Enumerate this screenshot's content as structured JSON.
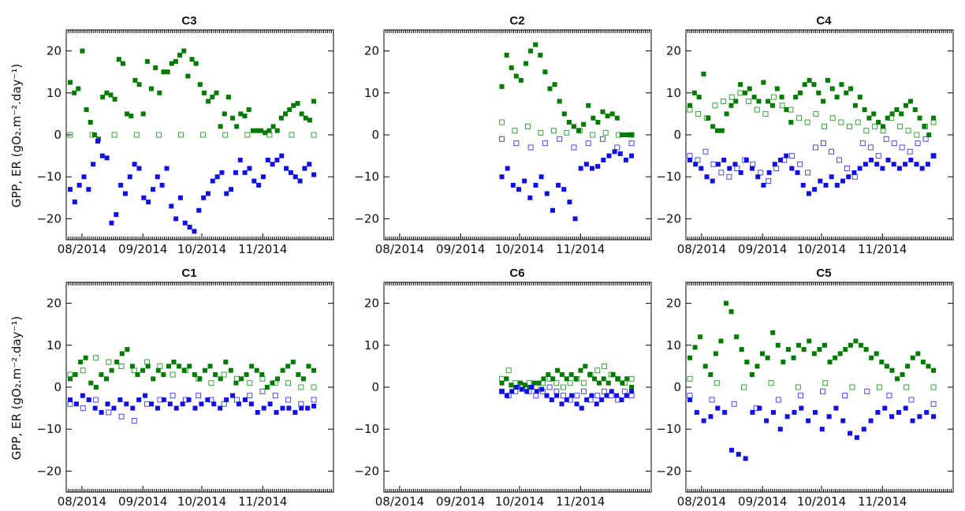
{
  "figure": {
    "ylabel": "GPP, ER (gO₂.m⁻².day⁻¹)",
    "colors": {
      "gpp": "#007a00",
      "er": "#1010e0",
      "gpp_light": "#3aa03a",
      "er_light": "#4a4ae8"
    }
  },
  "chart_data": [
    {
      "type": "scatter",
      "title": "C3",
      "ylim": [
        -25,
        25
      ],
      "yticks": [
        -20,
        -10,
        0,
        10,
        20
      ],
      "xlim": [
        "2014-07-24",
        "2014-12-07"
      ],
      "xticks": [
        "08/2014",
        "09/2014",
        "10/2014",
        "11/2014"
      ],
      "gpp_filled": [
        12.5,
        10,
        11,
        20,
        6,
        3,
        0,
        -1,
        9,
        10,
        9.5,
        8.5,
        18,
        17,
        5,
        4.5,
        13,
        12,
        5,
        17.5,
        11,
        16,
        10,
        15,
        15,
        17,
        17.5,
        19,
        20,
        14,
        18,
        17,
        12,
        10,
        8,
        9,
        10,
        2,
        5,
        9,
        4,
        2,
        5,
        4.5,
        6,
        1,
        1,
        1,
        0.5,
        1,
        2,
        1,
        4,
        5,
        6,
        7,
        7.5,
        5,
        4,
        3.5,
        8
      ],
      "er_filled": [
        -13,
        -16,
        -12,
        -10,
        -13,
        -7,
        -1.5,
        -5,
        -5.5,
        -21,
        -19,
        -12,
        -14,
        -10,
        -7,
        -8,
        -15,
        -16,
        -13,
        -10,
        -12,
        -8,
        -17,
        -20,
        -15,
        -21,
        -22,
        -23,
        -18,
        -15,
        -14,
        -11,
        -10,
        -9,
        -14,
        -13,
        -9,
        -6,
        -9,
        -8,
        -11,
        -12,
        -10,
        -6,
        -7,
        -6,
        -5,
        -8,
        -9,
        -10,
        -11,
        -8,
        -7,
        -9.5
      ],
      "gpp_open": [
        0,
        0,
        0,
        0,
        0,
        0,
        0,
        0,
        0,
        0,
        0,
        0
      ],
      "er_open": []
    },
    {
      "type": "scatter",
      "title": "C2",
      "ylim": [
        -25,
        25
      ],
      "yticks": [
        -20,
        -10,
        0,
        10,
        20
      ],
      "xlim": [
        "2014-07-24",
        "2014-12-07"
      ],
      "xticks": [
        "08/2014",
        "09/2014",
        "10/2014",
        "11/2014"
      ],
      "gpp_filled": [
        11.5,
        19,
        16,
        14,
        13,
        17,
        20,
        21.5,
        19,
        15,
        11,
        12,
        8,
        5,
        3,
        2,
        1,
        2.5,
        7,
        4,
        3,
        5.5,
        4.5,
        5,
        4,
        0,
        0,
        0
      ],
      "er_filled": [
        -10,
        -8,
        -12,
        -13,
        -11,
        -15,
        -12,
        -10,
        -14,
        -18,
        -12,
        -13,
        -16,
        -20,
        -8,
        -7,
        -8,
        -7.5,
        -6,
        -5,
        -4,
        -4.5,
        -6,
        -5
      ],
      "gpp_open": [
        3,
        1,
        2,
        0.5,
        1,
        0.5,
        1,
        0,
        0.5,
        0,
        0
      ],
      "er_open": [
        -1,
        -2,
        -3,
        -2,
        -1,
        -3,
        -2,
        -1,
        -3,
        -2
      ]
    },
    {
      "type": "scatter",
      "title": "C4",
      "ylim": [
        -25,
        25
      ],
      "yticks": [
        -20,
        -10,
        0,
        10,
        20
      ],
      "xlim": [
        "2014-07-24",
        "2014-12-07"
      ],
      "xticks": [
        "08/2014",
        "09/2014",
        "10/2014",
        "11/2014"
      ],
      "gpp_filled": [
        7,
        10,
        9,
        14.5,
        4,
        2,
        1,
        1,
        5,
        7,
        8,
        12,
        10,
        11,
        9,
        8,
        12.5,
        8,
        7,
        11,
        9,
        6,
        3,
        9,
        10,
        12,
        13,
        12,
        10,
        8,
        13,
        11,
        9,
        12,
        10,
        11,
        7,
        9,
        6,
        4,
        5,
        3,
        2,
        4,
        5,
        6,
        5,
        7,
        8,
        6,
        4,
        2,
        0,
        4
      ],
      "er_filled": [
        -6,
        -7,
        -8,
        -10,
        -11,
        -7,
        -6,
        -8,
        -7,
        -9,
        -6,
        -8,
        -10,
        -12,
        -9,
        -7,
        -6,
        -5,
        -8,
        -9,
        -12,
        -14,
        -13,
        -11,
        -12,
        -10,
        -12,
        -11,
        -10,
        -9,
        -8,
        -7,
        -6,
        -7,
        -8,
        -6,
        -7,
        -8,
        -7,
        -6,
        -7,
        -8,
        -7,
        -5
      ],
      "gpp_open": [
        6,
        5,
        4,
        7,
        8,
        9,
        10,
        8,
        6,
        5,
        9,
        7,
        6,
        4,
        3,
        5,
        2,
        4,
        3,
        2,
        3,
        1,
        2,
        1,
        4,
        2,
        1,
        0,
        2,
        3
      ],
      "er_open": [
        -5,
        -6,
        -4,
        -7,
        -9,
        -10,
        -8,
        -6,
        -7,
        -9,
        -11,
        -8,
        -6,
        -5,
        -7,
        -9,
        -3,
        -2,
        -4,
        -6,
        -8,
        -10,
        -2,
        -3,
        -5,
        -1,
        -2,
        -3,
        -4,
        -2,
        -1,
        -5
      ]
    },
    {
      "type": "scatter",
      "title": "C1",
      "ylim": [
        -25,
        25
      ],
      "yticks": [
        -20,
        -10,
        0,
        10,
        20
      ],
      "xlim": [
        "2014-07-24",
        "2014-12-07"
      ],
      "xticks": [
        "08/2014",
        "09/2014",
        "10/2014",
        "11/2014"
      ],
      "gpp_filled": [
        2,
        3,
        6,
        7,
        1,
        0,
        3,
        2,
        4,
        6,
        8,
        9,
        5,
        3,
        4,
        5,
        2,
        4,
        3,
        5,
        6,
        5,
        4,
        5,
        3,
        2,
        4,
        5,
        3,
        2,
        6,
        4,
        1,
        2,
        3,
        5,
        4,
        3,
        0,
        1,
        2,
        4,
        5,
        6,
        3,
        2,
        5,
        4
      ],
      "er_filled": [
        -3,
        -4,
        -2,
        -3,
        -5,
        -6,
        -4,
        -5,
        -3,
        -4,
        -5,
        -3,
        -2,
        -4,
        -5,
        -3,
        -4,
        -5,
        -4,
        -3,
        -5,
        -4,
        -3,
        -4,
        -5,
        -3,
        -2,
        -4,
        -3,
        -4,
        -6,
        -5,
        -4,
        -6,
        -5,
        -5,
        -6,
        -5,
        -5,
        -4.5
      ],
      "gpp_open": [
        3,
        4,
        7,
        6,
        5,
        4,
        6,
        5,
        3,
        4,
        2,
        1,
        3,
        2,
        1,
        2,
        1,
        1,
        0,
        0
      ],
      "er_open": [
        -4,
        -5,
        -3,
        -6,
        -7,
        -8,
        -4,
        -3,
        -2,
        -3,
        -2,
        -3,
        -4,
        -3,
        -2,
        -1,
        -2,
        -3,
        -4,
        -3
      ]
    },
    {
      "type": "scatter",
      "title": "C6",
      "ylim": [
        -25,
        25
      ],
      "yticks": [
        -20,
        -10,
        0,
        10,
        20
      ],
      "xlim": [
        "2014-07-24",
        "2014-12-07"
      ],
      "xticks": [
        "08/2014",
        "09/2014",
        "10/2014",
        "11/2014"
      ],
      "gpp_filled": [
        1,
        2,
        0.5,
        0,
        1,
        0.5,
        0,
        1,
        1,
        2,
        3,
        2,
        4,
        3,
        2,
        3,
        2,
        4,
        5,
        3,
        2,
        1,
        2,
        1,
        3,
        2,
        1,
        2,
        0
      ],
      "er_filled": [
        -1,
        -2,
        -1,
        0,
        -0.5,
        -1,
        0,
        -1,
        -0.5,
        -2,
        -3,
        -2,
        -4,
        -3,
        -2,
        -4,
        -5,
        -3,
        -2,
        -4,
        -3,
        -2,
        -1,
        -2,
        -3,
        -2,
        -1
      ],
      "gpp_open": [
        2,
        4,
        1,
        0.5,
        1,
        0,
        1,
        2,
        1,
        0,
        1,
        2,
        1,
        3,
        4,
        5,
        3,
        2,
        1,
        2
      ],
      "er_open": [
        -1,
        -2,
        -1,
        0,
        -1,
        -2,
        -1,
        0,
        -1,
        -2,
        -3,
        -2,
        -1,
        -3,
        -2,
        -1,
        -2,
        -3,
        -1,
        -2
      ]
    },
    {
      "type": "scatter",
      "title": "C5",
      "ylim": [
        -25,
        25
      ],
      "yticks": [
        -20,
        -10,
        0,
        10,
        20
      ],
      "xlim": [
        "2014-07-24",
        "2014-12-07"
      ],
      "xticks": [
        "08/2014",
        "09/2014",
        "10/2014",
        "11/2014"
      ],
      "gpp_filled": [
        7,
        9.5,
        12,
        5,
        3,
        8,
        11,
        20,
        18,
        12,
        9,
        6,
        3,
        5,
        8,
        7,
        13,
        10,
        6,
        9,
        7,
        10,
        9,
        11,
        8,
        9,
        10,
        6,
        7,
        8,
        9,
        10,
        11,
        10,
        9,
        7,
        8,
        6,
        5,
        4,
        2,
        3,
        5,
        7,
        8,
        6,
        5,
        4
      ],
      "er_filled": [
        -3,
        -6,
        -8,
        -7,
        -5,
        -6,
        -15,
        -16,
        -17,
        -6,
        -5,
        -8,
        -6,
        -10,
        -7,
        -6,
        -5,
        -8,
        -6,
        -10,
        -7,
        -5,
        -8,
        -11,
        -12,
        -10,
        -8,
        -6,
        -5,
        -7,
        -6,
        -5,
        -8,
        -7,
        -6,
        -7
      ],
      "gpp_open": [
        2,
        1,
        0,
        1,
        0,
        1,
        0,
        0,
        0,
        0
      ],
      "er_open": [
        -2,
        -3,
        -4,
        -5,
        -3,
        -2,
        -1,
        -2,
        -1,
        -2,
        -3,
        -4
      ]
    }
  ]
}
